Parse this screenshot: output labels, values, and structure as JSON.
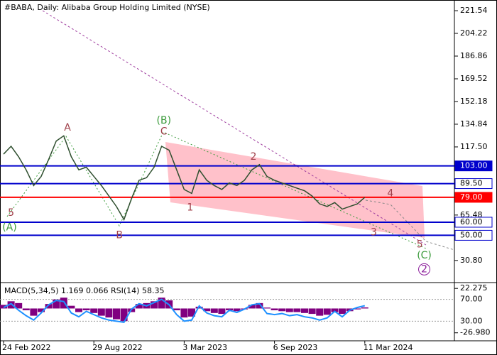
{
  "chart_data": [
    {
      "type": "line",
      "title": "#BABA, Daily:  Alibaba Group Holding Limited (NYSE)",
      "categories": [
        "24 Feb 2022",
        null,
        null,
        null,
        null,
        null,
        null,
        null,
        null,
        null,
        null,
        null,
        "29 Aug 2022",
        null,
        null,
        null,
        null,
        null,
        null,
        null,
        null,
        null,
        null,
        null,
        "3 Mar 2023",
        null,
        null,
        null,
        null,
        null,
        null,
        null,
        null,
        null,
        null,
        null,
        "6 Sep 2023",
        null,
        null,
        null,
        null,
        null,
        null,
        null,
        null,
        null,
        null,
        null,
        "11 Mar 2024"
      ],
      "series": [
        {
          "name": "BABA",
          "color": "#2f4f2f",
          "values": [
            112,
            118,
            110,
            100,
            88,
            95,
            108,
            122,
            126,
            110,
            100,
            102,
            95,
            88,
            80,
            72,
            62,
            78,
            92,
            94,
            102,
            118,
            115,
            100,
            85,
            82,
            100,
            92,
            88,
            85,
            90,
            88,
            92,
            100,
            104,
            95,
            92,
            90,
            88,
            86,
            84,
            80,
            74,
            72,
            75,
            70,
            72,
            74,
            79
          ]
        }
      ],
      "ylim": [
        13.9,
        229.7
      ],
      "yticks": [
        221.54,
        204.22,
        186.86,
        169.52,
        152.18,
        134.84,
        {
          "value": 117.5,
          "label": "117.50"
        },
        65.48,
        {
          "value": 30.8,
          "label": "30.80"
        }
      ],
      "levels": [
        {
          "value": 103,
          "label": "103.00",
          "color": "#0000cc",
          "fill": "#0000cc"
        },
        {
          "value": 89.5,
          "label": "89.50",
          "color": "#0000cc",
          "fill": "#ffffff"
        },
        {
          "value": 79,
          "label": "79.00",
          "color": "#ff0000",
          "fill": "#ff0000"
        },
        {
          "value": 60,
          "label": "60.00",
          "color": "#0000cc",
          "fill": "#ffffff"
        },
        {
          "value": 50,
          "label": "50.00",
          "color": "#0000cc",
          "fill": "#ffffff"
        }
      ],
      "annotations": [
        {
          "text": "5",
          "x": 1,
          "y": 67,
          "color": "#a0404a"
        },
        {
          "text": "(A)",
          "x": 0.8,
          "y": 56,
          "color": "#3a9a3a"
        },
        {
          "text": "A",
          "x": 8.5,
          "y": 132,
          "color": "#a0404a"
        },
        {
          "text": "B",
          "x": 15.4,
          "y": 50,
          "color": "#a0404a"
        },
        {
          "text": "(B)",
          "x": 21.3,
          "y": 137.5,
          "color": "#3a9a3a"
        },
        {
          "text": "C",
          "x": 21.3,
          "y": 129,
          "color": "#a0404a"
        },
        {
          "text": "1",
          "x": 24.8,
          "y": 71,
          "color": "#a0404a"
        },
        {
          "text": "2",
          "x": 33.2,
          "y": 110,
          "color": "#a0404a"
        },
        {
          "text": "3",
          "x": 49.2,
          "y": 52,
          "color": "#a0404a"
        },
        {
          "text": "4",
          "x": 51.4,
          "y": 82,
          "color": "#a0404a"
        },
        {
          "text": "5",
          "x": 55.3,
          "y": 43,
          "color": "#a0404a"
        },
        {
          "text": "(C)",
          "x": 55.9,
          "y": 34.5,
          "color": "#3a9a3a"
        },
        {
          "text": "2",
          "x": 55.9,
          "y": 24,
          "color": "#8a1a9a",
          "circle": true
        }
      ]
    },
    {
      "type": "indicator",
      "title": "MACD(5,34,5) 1.169 0.066 RSI(14) 58.35",
      "series": [
        {
          "name": "MACD",
          "color": "#800080",
          "axis": "y2",
          "values": [
            4,
            8,
            6,
            -2,
            -8,
            -4,
            5,
            10,
            12,
            3,
            -4,
            -2,
            -5,
            -8,
            -10,
            -12,
            -14,
            -4,
            5,
            6,
            8,
            12,
            9,
            -2,
            -10,
            -9,
            2,
            -3,
            -5,
            -6,
            -2,
            -3,
            -1,
            4,
            6,
            1,
            -2,
            -3,
            -4,
            -4,
            -5,
            -6,
            -8,
            -7,
            -4,
            -6,
            -3,
            -1,
            1.169
          ]
        },
        {
          "name": "RSI",
          "color": "#1e90ff",
          "values": [
            55,
            62,
            50,
            40,
            32,
            45,
            60,
            68,
            66,
            45,
            38,
            48,
            42,
            36,
            32,
            30,
            28,
            52,
            62,
            58,
            64,
            70,
            60,
            42,
            30,
            32,
            58,
            45,
            40,
            38,
            50,
            46,
            52,
            60,
            62,
            44,
            42,
            44,
            40,
            42,
            38,
            36,
            32,
            36,
            48,
            38,
            50,
            55,
            58.35
          ]
        }
      ],
      "ylim": [
        -6,
        100.7
      ],
      "yticks": [
        {
          "value": 70,
          "label": "70.00"
        },
        {
          "value": 30,
          "label": "30.00"
        }
      ],
      "y2lim": [
        -35.86,
        28.73
      ],
      "y2ticks": [
        22.275,
        {
          "value": -26.98,
          "label": "-26.980"
        }
      ]
    }
  ]
}
